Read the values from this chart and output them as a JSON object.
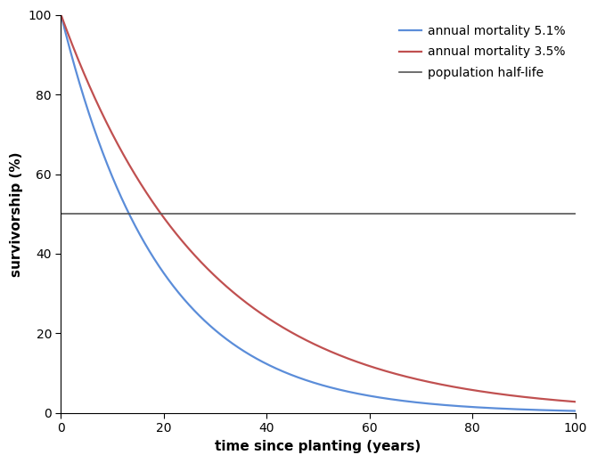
{
  "title": "",
  "xlabel": "time since planting (years)",
  "ylabel": "survivorship (%)",
  "mortality_high": 0.051,
  "mortality_low": 0.035,
  "x_max": 100,
  "ylim": [
    0,
    100
  ],
  "xlim": [
    0,
    100
  ],
  "half_life_y": 50,
  "color_high": "#5B8DD9",
  "color_low": "#C05050",
  "color_halflife": "#555555",
  "legend_labels": [
    "annual mortality 5.1%",
    "annual mortality 3.5%",
    "population half-life"
  ],
  "xticks": [
    0,
    20,
    40,
    60,
    80,
    100
  ],
  "yticks": [
    0,
    20,
    40,
    60,
    80,
    100
  ],
  "xlabel_fontsize": 11,
  "ylabel_fontsize": 11,
  "tick_fontsize": 10,
  "legend_fontsize": 10,
  "linewidth_curve": 1.6,
  "linewidth_halflife": 1.2
}
